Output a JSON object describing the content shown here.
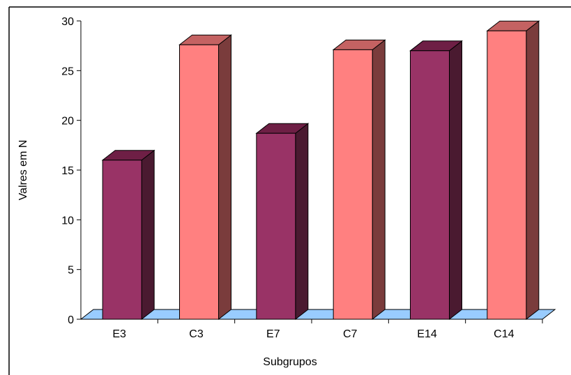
{
  "chart_data": {
    "type": "bar",
    "categories": [
      "E3",
      "C3",
      "E7",
      "C7",
      "E14",
      "C14"
    ],
    "values": [
      16,
      27.6,
      18.7,
      27.1,
      27,
      29
    ],
    "xlabel": "Subgrupos",
    "ylabel": "Valres em N",
    "ylim": [
      0,
      30
    ],
    "yticks": [
      "0",
      "5",
      "10",
      "15",
      "20",
      "25",
      "30"
    ],
    "grid": false,
    "legend": "none",
    "style": "3d-column",
    "colors": {
      "E": {
        "front": "#993366",
        "top": "#6e1f45",
        "side": "#4a1a30"
      },
      "C": {
        "front": "#ff8080",
        "top": "#c46262",
        "side": "#7a3c3c"
      },
      "floor": "#99ccff"
    }
  }
}
